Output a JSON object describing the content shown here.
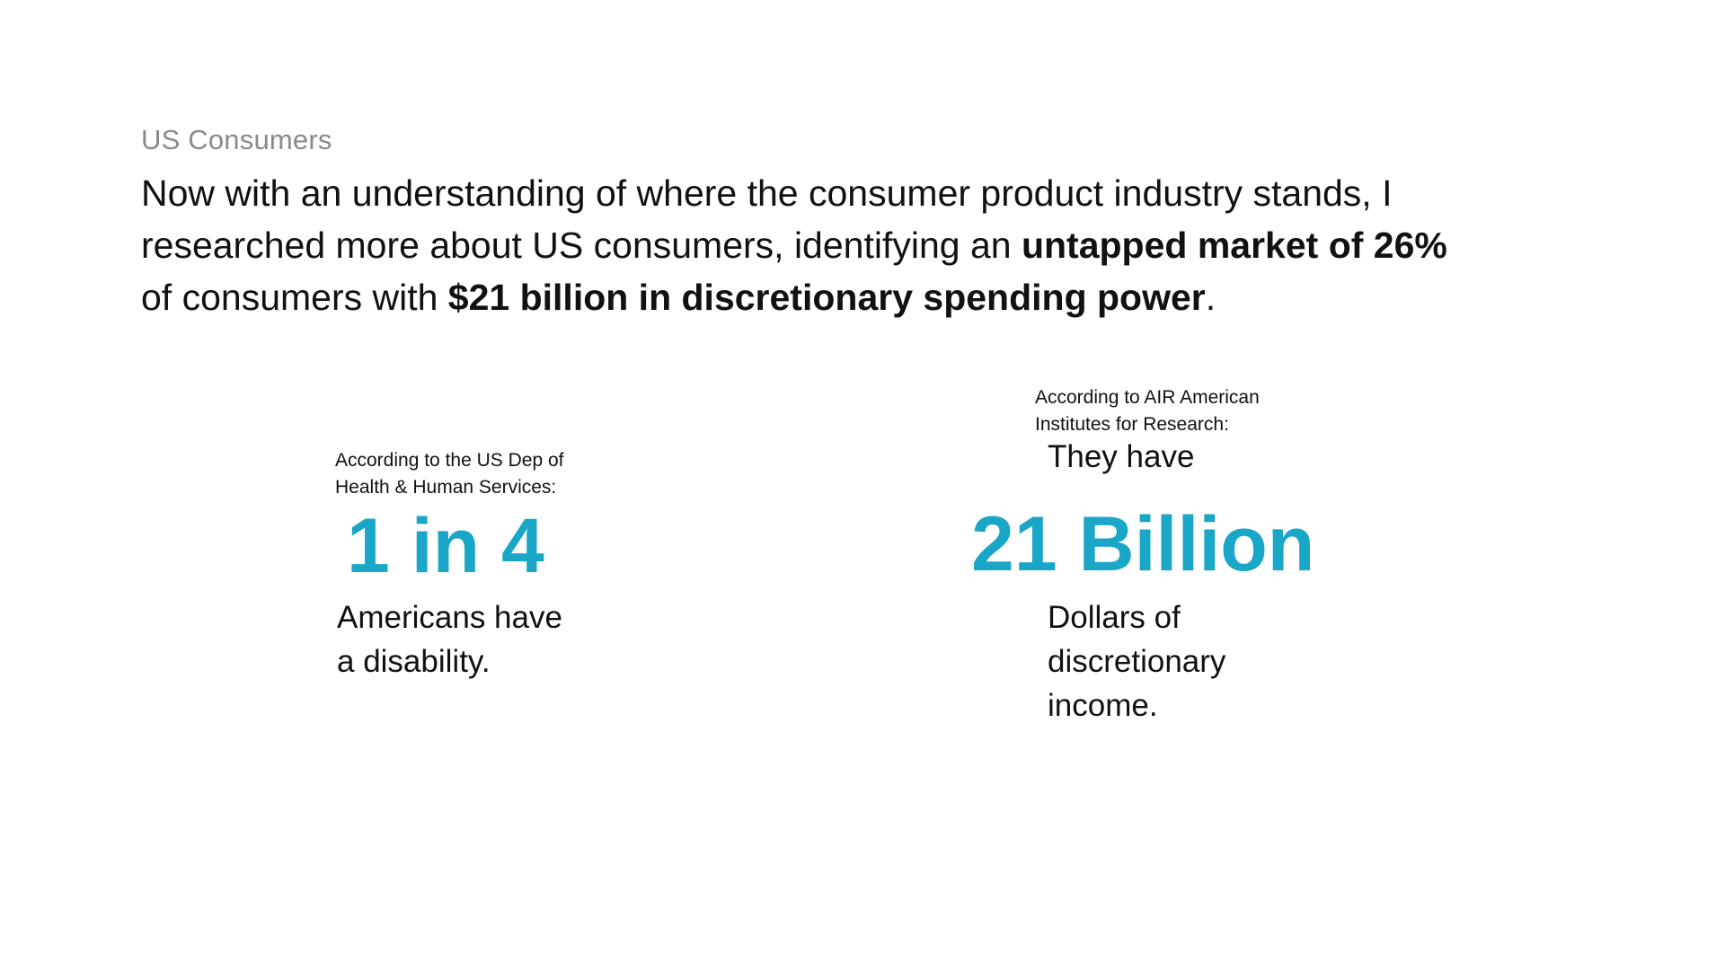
{
  "slide": {
    "eyebrow": "US Consumers",
    "headline": {
      "line1": "Now with an understanding of where the consumer product industry stands, I",
      "line2_prefix": "researched more about US consumers, identifying an ",
      "line2_bold": "untapped market of 26%",
      "line3_prefix": "of consumers with ",
      "line3_bold": "$21 billion in discretionary spending power",
      "line3_suffix": "."
    }
  },
  "stats": {
    "left": {
      "source_line1": "According to the US Dep of",
      "source_line2": "Health & Human Services:",
      "figure": "1 in 4",
      "desc_line1": "Americans have",
      "desc_line2": "a disability."
    },
    "right": {
      "source_line1": "According to AIR American",
      "source_line2": "Institutes for Research:",
      "lead": "They have",
      "figure": "21 Billion",
      "desc_line1": "Dollars of",
      "desc_line2": "discretionary",
      "desc_line3": "income."
    }
  },
  "colors": {
    "accent": "#1aa6c7",
    "eyebrow": "#8a8a8a",
    "text": "#111111"
  }
}
